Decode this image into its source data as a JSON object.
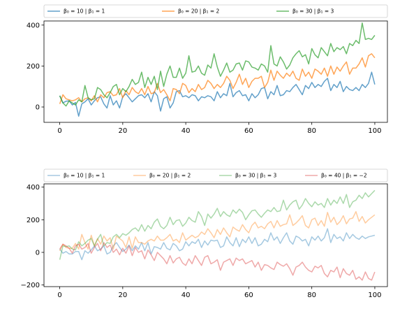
{
  "chart_data": [
    {
      "type": "line",
      "title": "",
      "xlabel": "",
      "ylabel": "",
      "xlim": [
        -5,
        104
      ],
      "ylim": [
        -75,
        420
      ],
      "xticks": [
        0,
        20,
        40,
        60,
        80,
        100
      ],
      "yticks": [
        0,
        200,
        400
      ],
      "grid": false,
      "legend_placement": "top-outside",
      "series": [
        {
          "name": "β₀ = 10 | β₁ = 1",
          "color": "#1f77b4",
          "alpha": 0.7,
          "values": [
            55,
            20,
            28,
            30,
            10,
            22,
            -45,
            15,
            25,
            40,
            10,
            30,
            45,
            50,
            15,
            -5,
            55,
            10,
            30,
            -5,
            50,
            65,
            45,
            25,
            40,
            55,
            60,
            45,
            65,
            25,
            75,
            55,
            -20,
            40,
            50,
            -5,
            20,
            75,
            80,
            50,
            55,
            45,
            60,
            55,
            30,
            50,
            45,
            55,
            50,
            30,
            75,
            45,
            65,
            55,
            115,
            50,
            70,
            80,
            55,
            60,
            30,
            65,
            45,
            60,
            90,
            95,
            40,
            75,
            60,
            105,
            55,
            60,
            80,
            75,
            95,
            110,
            85,
            60,
            105,
            90,
            120,
            95,
            110,
            100,
            125,
            140,
            80,
            110,
            95,
            125,
            75,
            100,
            85,
            80,
            95,
            80,
            110,
            95,
            115,
            170,
            110
          ]
        },
        {
          "name": "β₀ = 20 | β₁ = 2",
          "color": "#ff7f0e",
          "alpha": 0.7,
          "values": [
            15,
            60,
            40,
            35,
            30,
            35,
            45,
            25,
            40,
            45,
            30,
            55,
            25,
            60,
            45,
            70,
            75,
            55,
            60,
            90,
            45,
            80,
            60,
            95,
            75,
            65,
            90,
            60,
            100,
            65,
            70,
            115,
            70,
            85,
            60,
            30,
            90,
            85,
            65,
            115,
            105,
            70,
            90,
            75,
            110,
            85,
            95,
            130,
            115,
            90,
            110,
            95,
            115,
            150,
            130,
            90,
            120,
            160,
            110,
            140,
            95,
            125,
            140,
            140,
            150,
            95,
            120,
            180,
            130,
            175,
            155,
            140,
            165,
            150,
            175,
            140,
            130,
            185,
            150,
            170,
            140,
            185,
            175,
            160,
            190,
            150,
            200,
            160,
            195,
            175,
            200,
            220,
            160,
            190,
            190,
            210,
            240,
            195,
            250,
            260,
            240
          ]
        },
        {
          "name": "β₀ = 30 | β₁ = 3",
          "color": "#2ca02c",
          "alpha": 0.7,
          "values": [
            55,
            20,
            5,
            30,
            20,
            10,
            35,
            25,
            105,
            45,
            35,
            40,
            95,
            85,
            60,
            45,
            70,
            100,
            110,
            60,
            90,
            75,
            100,
            135,
            110,
            120,
            170,
            95,
            145,
            110,
            150,
            85,
            175,
            100,
            160,
            200,
            145,
            145,
            190,
            140,
            165,
            250,
            170,
            175,
            200,
            165,
            155,
            205,
            190,
            260,
            195,
            150,
            180,
            215,
            170,
            180,
            210,
            215,
            180,
            225,
            220,
            195,
            190,
            180,
            210,
            200,
            170,
            300,
            210,
            200,
            245,
            220,
            185,
            205,
            240,
            260,
            275,
            245,
            255,
            210,
            285,
            255,
            240,
            290,
            270,
            250,
            310,
            270,
            290,
            280,
            295,
            260,
            310,
            300,
            325,
            310,
            410,
            330,
            335,
            330,
            350
          ]
        }
      ]
    },
    {
      "type": "line",
      "title": "",
      "xlabel": "",
      "ylabel": "",
      "xlim": [
        -5,
        104
      ],
      "ylim": [
        -210,
        420
      ],
      "xticks": [
        0,
        20,
        40,
        60,
        80,
        100
      ],
      "yticks": [
        -200,
        0,
        200,
        400
      ],
      "grid": false,
      "legend_placement": "top-outside",
      "series": [
        {
          "name": "β₀ = 10 | β₁ = 1",
          "color": "#1f77b4",
          "alpha": 0.4,
          "values": [
            20,
            -5,
            5,
            -10,
            -10,
            5,
            5,
            -45,
            10,
            -5,
            15,
            40,
            10,
            20,
            40,
            -10,
            0,
            40,
            60,
            30,
            5,
            20,
            45,
            10,
            40,
            20,
            60,
            10,
            60,
            -10,
            35,
            30,
            20,
            60,
            25,
            15,
            55,
            40,
            10,
            20,
            65,
            40,
            65,
            55,
            80,
            30,
            70,
            45,
            75,
            70,
            75,
            30,
            40,
            95,
            60,
            40,
            90,
            35,
            80,
            60,
            95,
            55,
            90,
            40,
            50,
            80,
            65,
            120,
            75,
            95,
            55,
            90,
            120,
            70,
            50,
            100,
            90,
            70,
            80,
            40,
            95,
            75,
            100,
            70,
            90,
            145,
            60,
            110,
            85,
            95,
            70,
            120,
            85,
            110,
            90,
            80,
            100,
            85,
            95,
            100,
            105
          ]
        },
        {
          "name": "β₀ = 20 | β₁ = 2",
          "color": "#ff7f0e",
          "alpha": 0.4,
          "values": [
            10,
            50,
            30,
            25,
            25,
            55,
            20,
            110,
            60,
            20,
            105,
            40,
            85,
            50,
            100,
            70,
            90,
            20,
            100,
            85,
            70,
            30,
            95,
            25,
            95,
            60,
            60,
            50,
            70,
            80,
            70,
            100,
            75,
            75,
            90,
            110,
            70,
            80,
            60,
            120,
            75,
            90,
            105,
            90,
            100,
            125,
            110,
            145,
            120,
            90,
            140,
            110,
            150,
            120,
            95,
            155,
            140,
            130,
            170,
            140,
            120,
            165,
            185,
            150,
            160,
            145,
            175,
            190,
            150,
            195,
            160,
            170,
            175,
            230,
            165,
            180,
            200,
            225,
            165,
            150,
            200,
            210,
            165,
            195,
            160,
            245,
            185,
            215,
            170,
            190,
            225,
            175,
            205,
            210,
            250,
            190,
            220,
            180,
            200,
            215,
            230
          ]
        },
        {
          "name": "β₀ = 30 | β₁ = 3",
          "color": "#2ca02c",
          "alpha": 0.4,
          "values": [
            -45,
            40,
            35,
            40,
            20,
            15,
            65,
            40,
            55,
            75,
            85,
            40,
            80,
            110,
            40,
            60,
            55,
            95,
            110,
            90,
            115,
            105,
            120,
            140,
            150,
            130,
            170,
            130,
            165,
            145,
            185,
            205,
            160,
            145,
            165,
            215,
            170,
            195,
            200,
            160,
            180,
            215,
            195,
            185,
            250,
            220,
            165,
            235,
            210,
            235,
            270,
            220,
            250,
            230,
            220,
            260,
            240,
            265,
            245,
            200,
            230,
            255,
            260,
            235,
            215,
            240,
            260,
            250,
            275,
            250,
            255,
            320,
            260,
            290,
            310,
            320,
            265,
            290,
            330,
            300,
            280,
            310,
            290,
            300,
            275,
            330,
            290,
            320,
            300,
            340,
            300,
            355,
            275,
            310,
            320,
            350,
            330,
            365,
            340,
            360,
            380
          ]
        },
        {
          "name": "β₀ = 40 | β₁ = −2",
          "color": "#d62728",
          "alpha": 0.4,
          "values": [
            20,
            50,
            40,
            25,
            -5,
            40,
            50,
            20,
            30,
            55,
            -5,
            30,
            55,
            10,
            60,
            30,
            45,
            0,
            20,
            -15,
            25,
            -5,
            40,
            -20,
            30,
            0,
            10,
            -40,
            15,
            -15,
            -50,
            0,
            -20,
            -40,
            -70,
            -20,
            -65,
            -40,
            -30,
            -65,
            -80,
            -40,
            -70,
            -20,
            -50,
            -80,
            -30,
            -20,
            -70,
            -60,
            -45,
            -110,
            -60,
            -50,
            -40,
            -80,
            -35,
            -50,
            -40,
            -70,
            -60,
            -50,
            -90,
            -60,
            -110,
            -75,
            -80,
            -95,
            -105,
            -60,
            -75,
            -85,
            -70,
            -100,
            -140,
            -90,
            -80,
            -60,
            -90,
            -110,
            -120,
            -85,
            -95,
            -80,
            -130,
            -150,
            -110,
            -120,
            -90,
            -155,
            -100,
            -130,
            -140,
            -110,
            -165,
            -150,
            -170,
            -120,
            -160,
            -170,
            -120
          ]
        }
      ]
    }
  ]
}
